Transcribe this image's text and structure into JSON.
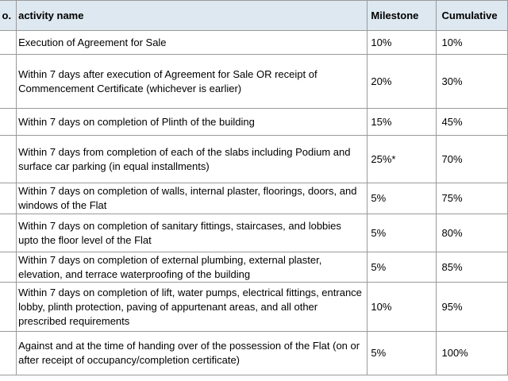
{
  "table": {
    "headers": {
      "no": "o.",
      "activity": "activity name",
      "milestone": "Milestone",
      "cumulative": "Cumulative"
    },
    "rows": [
      {
        "activity": "Execution of Agreement for Sale",
        "milestone": "10%",
        "cumulative": "10%"
      },
      {
        "activity": "Within 7 days after execution of Agreement for Sale OR receipt of Commencement Certificate (whichever is earlier)",
        "milestone": "20%",
        "cumulative": "30%"
      },
      {
        "activity": "Within 7 days on completion of Plinth of the building",
        "milestone": "15%",
        "cumulative": "45%"
      },
      {
        "activity": "Within 7 days from completion of each of the slabs including Podium and surface car parking (in equal installments)",
        "milestone": "25%*",
        "cumulative": "70%"
      },
      {
        "activity": "Within 7 days on completion of walls, internal plaster, floorings, doors, and windows of the Flat",
        "milestone": "5%",
        "cumulative": "75%"
      },
      {
        "activity": "Within 7 days on completion of sanitary fittings, staircases, and lobbies upto the floor level of the Flat",
        "milestone": "5%",
        "cumulative": "80%"
      },
      {
        "activity": "Within 7 days on completion of external plumbing, external plaster, elevation, and terrace waterproofing of the building",
        "milestone": "5%",
        "cumulative": "85%"
      },
      {
        "activity": "Within 7 days on completion of lift, water pumps, electrical fittings, entrance lobby, plinth protection, paving of appurtenant areas, and all other prescribed requirements",
        "milestone": "10%",
        "cumulative": "95%"
      },
      {
        "activity": "Against and at the time of handing over of the possession of the Flat (on or after receipt of occupancy/completion certificate)",
        "milestone": "5%",
        "cumulative": "100%"
      }
    ]
  }
}
